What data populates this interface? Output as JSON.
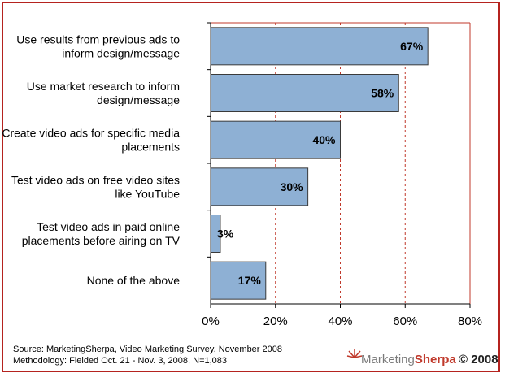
{
  "chart_data": {
    "type": "bar",
    "orientation": "horizontal",
    "categories": [
      [
        "Use results from previous ads to",
        "inform design/message"
      ],
      [
        "Use market research to inform",
        "design/message"
      ],
      [
        "Create video ads for specific media",
        "placements"
      ],
      [
        "Test video ads on free video sites",
        "like YouTube"
      ],
      [
        "Test video ads in paid online",
        "placements before airing on TV"
      ],
      [
        "None of the above"
      ]
    ],
    "values": [
      67,
      58,
      40,
      30,
      3,
      17
    ],
    "value_labels": [
      "67%",
      "58%",
      "40%",
      "30%",
      "3%",
      "17%"
    ],
    "xlim": [
      0,
      80
    ],
    "xticks": [
      0,
      20,
      40,
      60,
      80
    ],
    "xtick_labels": [
      "0%",
      "20%",
      "40%",
      "60%",
      "80%"
    ],
    "grid": "vertical dashed",
    "colors": {
      "bar": "#8eb0d4",
      "bar_edge": "#3a3a3a",
      "grid": "#c0392b",
      "frame": "#b5231f"
    }
  },
  "footnotes": {
    "source": "Source: MarketingSherpa, Video Marketing Survey, November 2008",
    "methodology": "Methodology: Fielded Oct. 21 - Nov. 3, 2008, N=1,083"
  },
  "logo": {
    "brand_part1": "Marketing",
    "brand_part2": "Sherpa",
    "year": "© 2008"
  }
}
